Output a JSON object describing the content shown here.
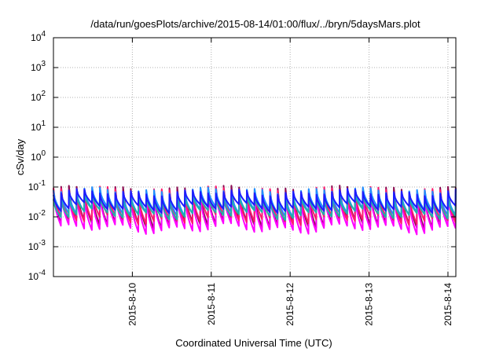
{
  "chart_data": {
    "type": "line",
    "title": "/data/run/goesPlots/archive/2015-08-14/01:00/flux/../bryn/5daysMars.plot",
    "xlabel": "Coordinated Universal Time (UTC)",
    "ylabel": "cSv/day",
    "yscale": "log",
    "ylim_exp": [
      -4,
      4
    ],
    "y_tick_exponents": [
      -4,
      -3,
      -2,
      -1,
      0,
      1,
      2,
      3,
      4
    ],
    "y_tick_base": "10",
    "x_start_day": 9.0,
    "x_end_day": 14.1,
    "x_ticks": [
      {
        "day": 10,
        "label": "2015-8-10"
      },
      {
        "day": 11,
        "label": "2015-8-11"
      },
      {
        "day": 12,
        "label": "2015-8-12"
      },
      {
        "day": 13,
        "label": "2015-8-13"
      },
      {
        "day": 14,
        "label": "2015-8-14"
      }
    ],
    "grid": true,
    "cycles_per_day": 10.2,
    "series": [
      {
        "color": "#8b0a50",
        "peak": 0.085,
        "trough": 0.006
      },
      {
        "color": "#ff00ff",
        "peak": 0.06,
        "trough": 0.004
      },
      {
        "color": "#ff1a6e",
        "peak": 0.08,
        "trough": 0.008
      },
      {
        "color": "#1e90ff",
        "peak": 0.075,
        "trough": 0.015
      },
      {
        "color": "#20b2aa",
        "peak": 0.045,
        "trough": 0.012
      },
      {
        "color": "#1c1cff",
        "peak": 0.065,
        "trough": 0.02
      }
    ]
  }
}
